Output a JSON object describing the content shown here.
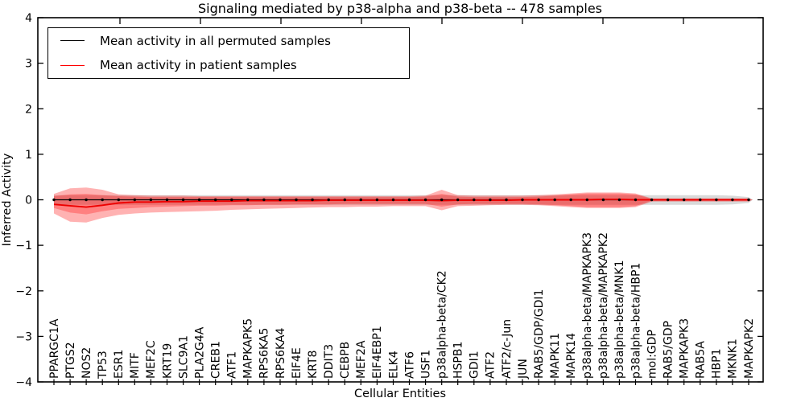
{
  "title": "Signaling mediated by p38-alpha and p38-beta -- 478 samples",
  "axes": {
    "xlabel": "Cellular Entities",
    "ylabel": "Inferred Activity",
    "ylim": [
      -4,
      4
    ],
    "yticks": [
      "4",
      "3",
      "2",
      "1",
      "0",
      "−1",
      "−2",
      "−3",
      "−4"
    ],
    "ytick_values": [
      4,
      3,
      2,
      1,
      0,
      -1,
      -2,
      -3,
      -4
    ]
  },
  "legend": {
    "items": [
      {
        "label": "Mean activity in all permuted samples",
        "color": "#000000"
      },
      {
        "label": "Mean activity in patient samples",
        "color": "#ff0000"
      }
    ]
  },
  "colors": {
    "background": "#ffffff",
    "spine": "#000000",
    "permuted_mean_line": "#000000",
    "patient_mean_line": "#ee0000",
    "patient_band": "#ff0000",
    "permuted_band": "#aaaaaa"
  },
  "chart_data": {
    "type": "line",
    "title": "Signaling mediated by p38-alpha and p38-beta -- 478 samples",
    "xlabel": "Cellular Entities",
    "ylabel": "Inferred Activity",
    "ylim": [
      -4,
      4
    ],
    "grid": false,
    "legend_position": "upper left",
    "x_tick_rotation": 90,
    "categories": [
      "PPARGC1A",
      "PTGS2",
      "NOS2",
      "TP53",
      "ESR1",
      "MITF",
      "MEF2C",
      "KRT19",
      "SLC9A1",
      "PLA2G4A",
      "CREB1",
      "ATF1",
      "MAPKAPK5",
      "RPS6KA5",
      "RPS6KA4",
      "EIF4E",
      "KRT8",
      "DDIT3",
      "CEBPB",
      "MEF2A",
      "EIF4EBP1",
      "ELK4",
      "ATF6",
      "USF1",
      "p38alpha-beta/CK2",
      "HSPB1",
      "GDI1",
      "ATF2",
      "ATF2/c-Jun",
      "JUN",
      "RAB5/GDP/GDI1",
      "MAPK11",
      "MAPK14",
      "p38alpha-beta/MAPKAPK3",
      "p38alpha-beta/MAPKAPK2",
      "p38alpha-beta/MNK1",
      "p38alpha-beta/HBP1",
      "mol:GDP",
      "RAB5/GDP",
      "MAPKAPK3",
      "RAB5A",
      "HBP1",
      "MKNK1",
      "MAPKAPK2"
    ],
    "series": [
      {
        "id": "permuted-mean",
        "name": "Mean activity in all permuted samples",
        "type": "line",
        "color": "#000000",
        "marker": "dot",
        "values": [
          0,
          0,
          0,
          0,
          0,
          0,
          0,
          0,
          0,
          0,
          0,
          0,
          0,
          0,
          0,
          0,
          0,
          0,
          0,
          0,
          0,
          0,
          0,
          0,
          0,
          0,
          0,
          0,
          0,
          0,
          0,
          0,
          0,
          0,
          0,
          0,
          0,
          0,
          0,
          0,
          0,
          0,
          0,
          0
        ]
      },
      {
        "id": "patient-mean",
        "name": "Mean activity in patient samples",
        "type": "line",
        "color": "#ee0000",
        "marker": "none",
        "values": [
          -0.1,
          -0.13,
          -0.16,
          -0.12,
          -0.07,
          -0.05,
          -0.05,
          -0.04,
          -0.04,
          -0.03,
          -0.03,
          -0.03,
          -0.02,
          -0.02,
          -0.02,
          -0.02,
          -0.02,
          -0.01,
          -0.01,
          -0.01,
          -0.01,
          -0.01,
          -0.01,
          -0.01,
          -0.02,
          -0.01,
          -0.01,
          -0.01,
          -0.01,
          0,
          0,
          0,
          0,
          0,
          0.01,
          0.01,
          0,
          0,
          0,
          0,
          0,
          0,
          0,
          0
        ]
      },
      {
        "id": "permuted-band",
        "name": "Permuted samples activity spread",
        "type": "band",
        "color": "#aaaaaa",
        "opacity": 0.45,
        "upper": [
          0.1,
          0.1,
          0.1,
          0.1,
          0.1,
          0.1,
          0.1,
          0.1,
          0.1,
          0.1,
          0.1,
          0.1,
          0.1,
          0.1,
          0.1,
          0.1,
          0.1,
          0.1,
          0.1,
          0.1,
          0.1,
          0.1,
          0.1,
          0.1,
          0.1,
          0.1,
          0.1,
          0.1,
          0.1,
          0.1,
          0.1,
          0.1,
          0.1,
          0.1,
          0.1,
          0.1,
          0.1,
          0.1,
          0.1,
          0.1,
          0.1,
          0.1,
          0.09,
          0.06
        ],
        "lower": [
          -0.11,
          -0.11,
          -0.11,
          -0.11,
          -0.11,
          -0.11,
          -0.11,
          -0.11,
          -0.11,
          -0.11,
          -0.11,
          -0.11,
          -0.11,
          -0.11,
          -0.11,
          -0.11,
          -0.11,
          -0.11,
          -0.11,
          -0.11,
          -0.11,
          -0.11,
          -0.11,
          -0.11,
          -0.11,
          -0.11,
          -0.11,
          -0.11,
          -0.11,
          -0.11,
          -0.11,
          -0.11,
          -0.11,
          -0.11,
          -0.11,
          -0.11,
          -0.11,
          -0.11,
          -0.11,
          -0.11,
          -0.11,
          -0.11,
          -0.1,
          -0.07
        ]
      },
      {
        "id": "patient-band-outer",
        "name": "Patient samples activity spread (outer)",
        "type": "band",
        "color": "#ff0000",
        "opacity": 0.3,
        "upper": [
          0.13,
          0.25,
          0.27,
          0.22,
          0.12,
          0.1,
          0.09,
          0.09,
          0.09,
          0.08,
          0.08,
          0.08,
          0.08,
          0.08,
          0.08,
          0.08,
          0.08,
          0.08,
          0.08,
          0.08,
          0.08,
          0.08,
          0.08,
          0.09,
          0.22,
          0.1,
          0.09,
          0.09,
          0.09,
          0.09,
          0.1,
          0.12,
          0.14,
          0.16,
          0.16,
          0.16,
          0.14,
          0.03,
          0.03,
          0.03,
          0.03,
          0.03,
          0.03,
          0.03
        ],
        "lower": [
          -0.3,
          -0.48,
          -0.5,
          -0.4,
          -0.33,
          -0.3,
          -0.28,
          -0.27,
          -0.26,
          -0.25,
          -0.24,
          -0.22,
          -0.21,
          -0.2,
          -0.19,
          -0.18,
          -0.17,
          -0.16,
          -0.16,
          -0.15,
          -0.15,
          -0.14,
          -0.14,
          -0.14,
          -0.23,
          -0.14,
          -0.13,
          -0.12,
          -0.11,
          -0.11,
          -0.12,
          -0.14,
          -0.16,
          -0.18,
          -0.18,
          -0.18,
          -0.16,
          -0.04,
          -0.04,
          -0.04,
          -0.04,
          -0.04,
          -0.04,
          -0.04
        ]
      },
      {
        "id": "patient-band-inner",
        "name": "Patient samples activity spread (inner)",
        "type": "band",
        "color": "#ff0000",
        "opacity": 0.28,
        "upper": [
          0.08,
          0.12,
          0.13,
          0.1,
          0.08,
          0.07,
          0.06,
          0.06,
          0.06,
          0.06,
          0.06,
          0.06,
          0.06,
          0.06,
          0.06,
          0.06,
          0.06,
          0.06,
          0.06,
          0.06,
          0.06,
          0.06,
          0.06,
          0.07,
          0.13,
          0.07,
          0.06,
          0.06,
          0.06,
          0.06,
          0.07,
          0.09,
          0.12,
          0.14,
          0.14,
          0.14,
          0.12,
          0.02,
          0.02,
          0.02,
          0.02,
          0.02,
          0.02,
          0.02
        ],
        "lower": [
          -0.18,
          -0.28,
          -0.32,
          -0.25,
          -0.2,
          -0.18,
          -0.16,
          -0.15,
          -0.14,
          -0.13,
          -0.13,
          -0.12,
          -0.12,
          -0.11,
          -0.11,
          -0.1,
          -0.1,
          -0.1,
          -0.09,
          -0.09,
          -0.09,
          -0.09,
          -0.09,
          -0.09,
          -0.15,
          -0.1,
          -0.09,
          -0.09,
          -0.09,
          -0.09,
          -0.1,
          -0.12,
          -0.14,
          -0.16,
          -0.16,
          -0.16,
          -0.14,
          -0.02,
          -0.02,
          -0.02,
          -0.02,
          -0.02,
          -0.02,
          -0.02
        ]
      }
    ]
  }
}
